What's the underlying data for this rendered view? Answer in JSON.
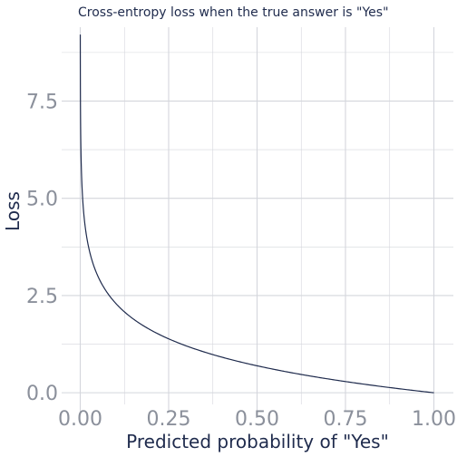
{
  "chart_data": {
    "type": "line",
    "title": "Cross-entropy loss when the true answer is \"Yes\"",
    "xlabel": "Predicted probability of \"Yes\"",
    "ylabel": "Loss",
    "xlim": [
      0,
      1
    ],
    "ylim": [
      -0.3,
      9.4
    ],
    "x_ticks": [
      "0.00",
      "0.25",
      "0.50",
      "0.75",
      "1.00"
    ],
    "x_tick_values": [
      0,
      0.25,
      0.5,
      0.75,
      1
    ],
    "y_ticks": [
      "0.0",
      "2.5",
      "5.0",
      "7.5"
    ],
    "y_tick_values": [
      0,
      2.5,
      5,
      7.5
    ],
    "series": [
      {
        "function": "-ln(p)",
        "x_min": 0.0001,
        "x_max": 1,
        "points": [
          {
            "x": 0.0001,
            "y": 9.21
          },
          {
            "x": 0.01,
            "y": 4.61
          },
          {
            "x": 0.05,
            "y": 3.0
          },
          {
            "x": 0.1,
            "y": 2.3
          },
          {
            "x": 0.25,
            "y": 1.39
          },
          {
            "x": 0.5,
            "y": 0.69
          },
          {
            "x": 0.75,
            "y": 0.29
          },
          {
            "x": 1.0,
            "y": 0.0
          }
        ]
      }
    ],
    "grid": true,
    "colors": {
      "line": "#1f2b4d",
      "grid": "#d4d6dc",
      "tick_text": "#8b909b",
      "label_text": "#1f2b4d"
    }
  }
}
